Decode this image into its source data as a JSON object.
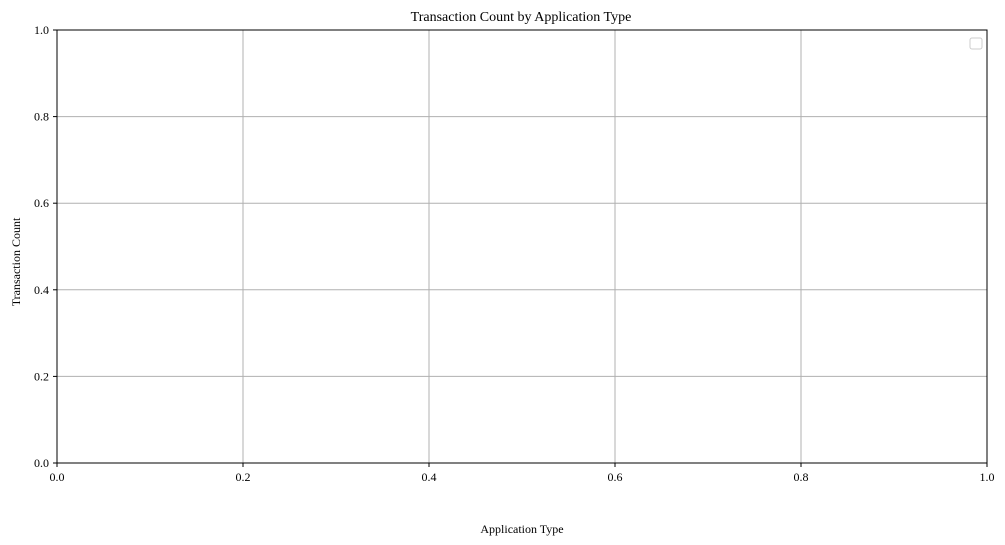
{
  "chart_data": {
    "type": "line",
    "title": "Transaction Count by Application Type",
    "xlabel": "Application Type",
    "ylabel": "Transaction Count",
    "xlim": [
      0,
      1
    ],
    "ylim": [
      0,
      1
    ],
    "x_ticks": [
      "0.0",
      "0.2",
      "0.4",
      "0.6",
      "0.8",
      "1.0"
    ],
    "y_ticks": [
      "0.0",
      "0.2",
      "0.4",
      "0.6",
      "0.8",
      "1.0"
    ],
    "grid": true,
    "legend": {
      "placement": "top-right",
      "entries": []
    },
    "series": []
  },
  "colors": {
    "grid": "#b0b0b0",
    "axis": "#000000",
    "legend_border": "#cccccc"
  }
}
